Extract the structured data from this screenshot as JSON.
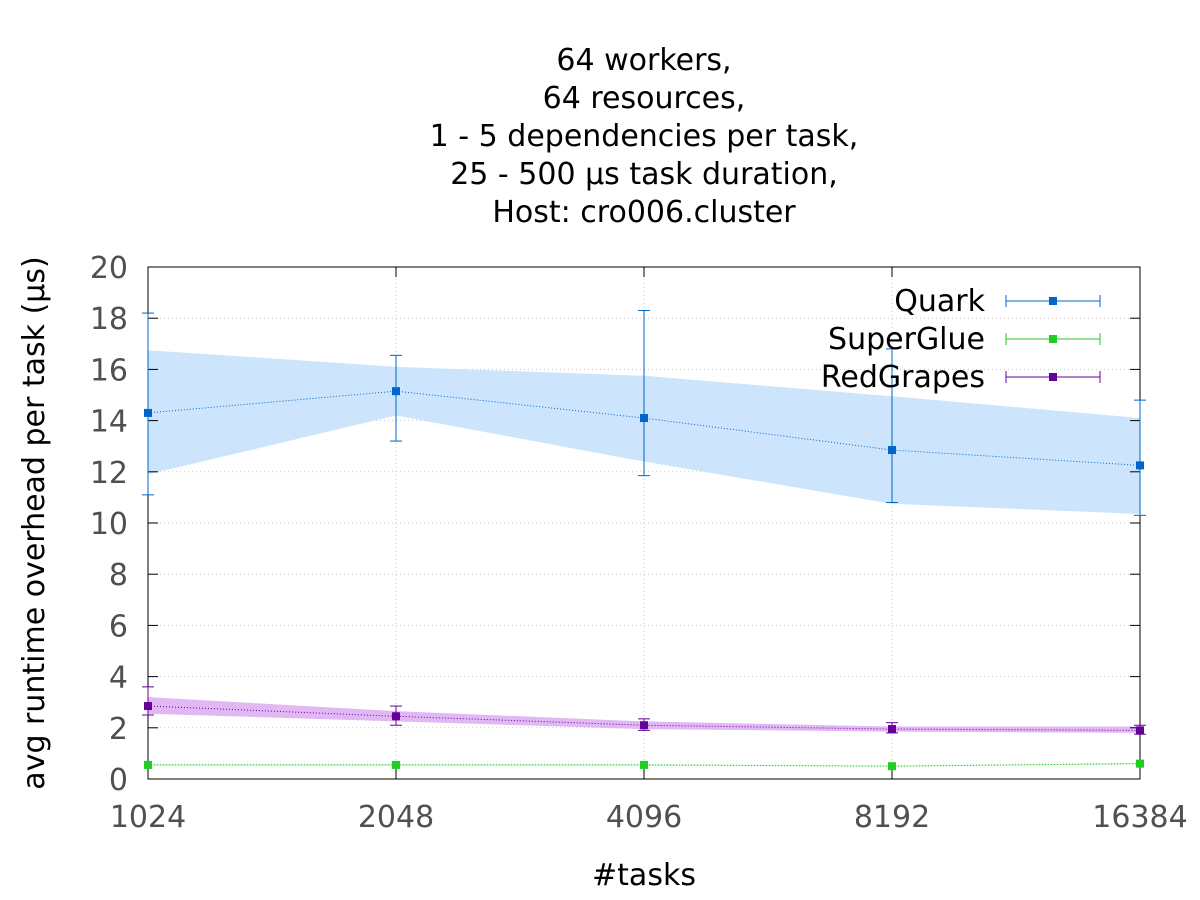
{
  "chart_data": {
    "type": "line",
    "title_lines": [
      "64 workers,",
      "64 resources,",
      "1 - 5 dependencies per task,",
      "25 - 500 µs task duration,",
      "Host: cro006.cluster"
    ],
    "xlabel": "#tasks",
    "ylabel": "avg runtime overhead per task (µs)",
    "x": [
      1024,
      2048,
      4096,
      8192,
      16384
    ],
    "x_scale": "log2",
    "ylim": [
      0,
      20
    ],
    "yticks": [
      0,
      2,
      4,
      6,
      8,
      10,
      12,
      14,
      16,
      18,
      20
    ],
    "grid": true,
    "legend_position": "top-right",
    "series": [
      {
        "name": "Quark",
        "color": "#0066cc",
        "band_color": "#cce4fc",
        "values": [
          14.3,
          15.15,
          14.1,
          12.85,
          12.25
        ],
        "err_low": [
          11.1,
          13.2,
          11.85,
          10.8,
          10.3
        ],
        "err_high": [
          18.2,
          16.55,
          18.3,
          16.8,
          14.8
        ],
        "band_low": [
          11.9,
          14.2,
          12.4,
          10.75,
          10.35
        ],
        "band_high": [
          16.75,
          16.1,
          15.75,
          14.95,
          14.1
        ]
      },
      {
        "name": "SuperGlue",
        "color": "#22cc22",
        "band_color": "#c8f4c8",
        "values": [
          0.55,
          0.55,
          0.55,
          0.5,
          0.6
        ],
        "err_low": [
          0.5,
          0.5,
          0.5,
          0.45,
          0.55
        ],
        "err_high": [
          0.6,
          0.6,
          0.6,
          0.55,
          0.65
        ],
        "band_low": [
          0.52,
          0.52,
          0.52,
          0.48,
          0.57
        ],
        "band_high": [
          0.58,
          0.58,
          0.58,
          0.53,
          0.63
        ]
      },
      {
        "name": "RedGrapes",
        "color": "#660099",
        "band_color": "#e2b8f4",
        "values": [
          2.85,
          2.45,
          2.1,
          1.95,
          1.9
        ],
        "err_low": [
          2.5,
          2.1,
          1.9,
          1.8,
          1.75
        ],
        "err_high": [
          3.6,
          2.85,
          2.35,
          2.2,
          2.1
        ],
        "band_low": [
          2.55,
          2.25,
          1.95,
          1.85,
          1.8
        ],
        "band_high": [
          3.2,
          2.65,
          2.25,
          2.05,
          2.05
        ]
      }
    ]
  }
}
